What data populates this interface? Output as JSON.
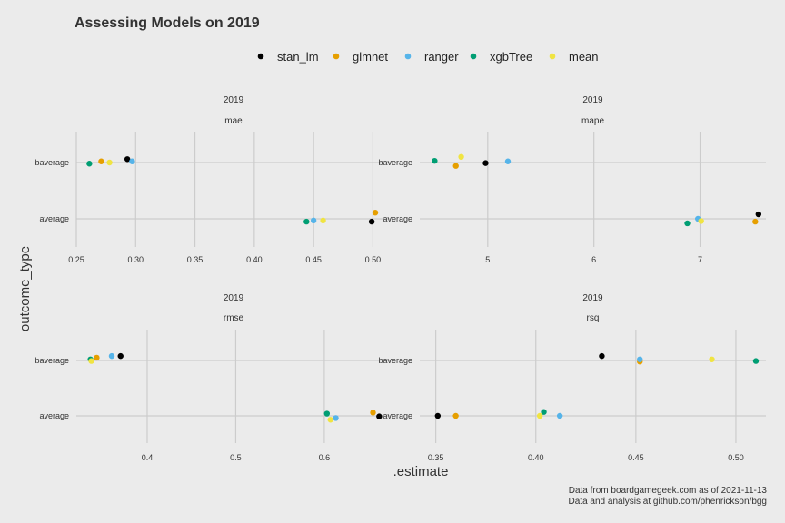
{
  "chart_data": {
    "type": "scatter",
    "title": "Assessing Models on 2019",
    "xlabel": ".estimate",
    "ylabel": "outcome_type",
    "caption": [
      "Data from boardgamegeek.com as of 2021-11-13",
      "Data and analysis at github.com/phenrickson/bgg"
    ],
    "legend": {
      "placement": "top",
      "entries": [
        {
          "name": "stan_lm",
          "color": "#000000"
        },
        {
          "name": "glmnet",
          "color": "#E69F00"
        },
        {
          "name": "ranger",
          "color": "#56B4E9"
        },
        {
          "name": "xgbTree",
          "color": "#009E73"
        },
        {
          "name": "mean",
          "color": "#F0E442"
        }
      ]
    },
    "categories": [
      "baverage",
      "average"
    ],
    "panels": [
      {
        "strip_top": "2019",
        "strip_bottom": "mae",
        "xlim": [
          0.25,
          0.515
        ],
        "xticks": [
          0.25,
          0.3,
          0.35,
          0.4,
          0.45,
          0.5
        ],
        "xtick_labels": [
          "0.25",
          "0.30",
          "0.35",
          "0.40",
          "0.45",
          "0.50"
        ],
        "points": [
          {
            "model": "stan_lm",
            "category": "baverage",
            "x": 0.293,
            "jitter": 0.06
          },
          {
            "model": "glmnet",
            "category": "baverage",
            "x": 0.271,
            "jitter": 0.02
          },
          {
            "model": "ranger",
            "category": "baverage",
            "x": 0.297,
            "jitter": 0.02
          },
          {
            "model": "xgbTree",
            "category": "baverage",
            "x": 0.261,
            "jitter": -0.02
          },
          {
            "model": "mean",
            "category": "baverage",
            "x": 0.278,
            "jitter": 0.0
          },
          {
            "model": "stan_lm",
            "category": "average",
            "x": 0.499,
            "jitter": -0.05
          },
          {
            "model": "glmnet",
            "category": "average",
            "x": 0.502,
            "jitter": 0.11
          },
          {
            "model": "ranger",
            "category": "average",
            "x": 0.45,
            "jitter": -0.03
          },
          {
            "model": "xgbTree",
            "category": "average",
            "x": 0.444,
            "jitter": -0.05
          },
          {
            "model": "mean",
            "category": "average",
            "x": 0.458,
            "jitter": -0.03
          }
        ]
      },
      {
        "strip_top": "2019",
        "strip_bottom": "mape",
        "xlim": [
          4.36,
          7.62
        ],
        "xticks": [
          5,
          6,
          7
        ],
        "xtick_labels": [
          "5",
          "6",
          "7"
        ],
        "points": [
          {
            "model": "stan_lm",
            "category": "baverage",
            "x": 4.98,
            "jitter": -0.01
          },
          {
            "model": "glmnet",
            "category": "baverage",
            "x": 4.7,
            "jitter": -0.06
          },
          {
            "model": "ranger",
            "category": "baverage",
            "x": 5.19,
            "jitter": 0.02
          },
          {
            "model": "xgbTree",
            "category": "baverage",
            "x": 4.5,
            "jitter": 0.03
          },
          {
            "model": "mean",
            "category": "baverage",
            "x": 4.75,
            "jitter": 0.1
          },
          {
            "model": "stan_lm",
            "category": "average",
            "x": 7.55,
            "jitter": 0.08
          },
          {
            "model": "glmnet",
            "category": "average",
            "x": 7.52,
            "jitter": -0.05
          },
          {
            "model": "ranger",
            "category": "average",
            "x": 6.98,
            "jitter": 0.0
          },
          {
            "model": "xgbTree",
            "category": "average",
            "x": 6.88,
            "jitter": -0.08
          },
          {
            "model": "mean",
            "category": "average",
            "x": 7.01,
            "jitter": -0.04
          }
        ]
      },
      {
        "strip_top": "2019",
        "strip_bottom": "rmse",
        "xlim": [
          0.32,
          0.675
        ],
        "xticks": [
          0.4,
          0.5,
          0.6
        ],
        "xtick_labels": [
          "0.4",
          "0.5",
          "0.6"
        ],
        "points": [
          {
            "model": "stan_lm",
            "category": "baverage",
            "x": 0.37,
            "jitter": 0.08
          },
          {
            "model": "glmnet",
            "category": "baverage",
            "x": 0.343,
            "jitter": 0.05
          },
          {
            "model": "ranger",
            "category": "baverage",
            "x": 0.36,
            "jitter": 0.08
          },
          {
            "model": "xgbTree",
            "category": "baverage",
            "x": 0.336,
            "jitter": 0.02
          },
          {
            "model": "mean",
            "category": "baverage",
            "x": 0.337,
            "jitter": -0.01
          },
          {
            "model": "stan_lm",
            "category": "average",
            "x": 0.662,
            "jitter": -0.01
          },
          {
            "model": "glmnet",
            "category": "average",
            "x": 0.655,
            "jitter": 0.06
          },
          {
            "model": "ranger",
            "category": "average",
            "x": 0.613,
            "jitter": -0.04
          },
          {
            "model": "xgbTree",
            "category": "average",
            "x": 0.603,
            "jitter": 0.04
          },
          {
            "model": "mean",
            "category": "average",
            "x": 0.607,
            "jitter": -0.07
          }
        ]
      },
      {
        "strip_top": "2019",
        "strip_bottom": "rsq",
        "xlim": [
          0.342,
          0.515
        ],
        "xticks": [
          0.35,
          0.4,
          0.45,
          0.5
        ],
        "xtick_labels": [
          "0.35",
          "0.40",
          "0.45",
          "0.50"
        ],
        "points": [
          {
            "model": "stan_lm",
            "category": "baverage",
            "x": 0.433,
            "jitter": 0.08
          },
          {
            "model": "glmnet",
            "category": "baverage",
            "x": 0.452,
            "jitter": -0.02
          },
          {
            "model": "ranger",
            "category": "baverage",
            "x": 0.452,
            "jitter": 0.02
          },
          {
            "model": "xgbTree",
            "category": "baverage",
            "x": 0.51,
            "jitter": -0.01
          },
          {
            "model": "mean",
            "category": "baverage",
            "x": 0.488,
            "jitter": 0.02
          },
          {
            "model": "stan_lm",
            "category": "average",
            "x": 0.351,
            "jitter": 0.0
          },
          {
            "model": "glmnet",
            "category": "average",
            "x": 0.36,
            "jitter": 0.0
          },
          {
            "model": "ranger",
            "category": "average",
            "x": 0.412,
            "jitter": 0.0
          },
          {
            "model": "xgbTree",
            "category": "average",
            "x": 0.404,
            "jitter": 0.07
          },
          {
            "model": "mean",
            "category": "average",
            "x": 0.402,
            "jitter": 0.0
          }
        ]
      }
    ]
  }
}
